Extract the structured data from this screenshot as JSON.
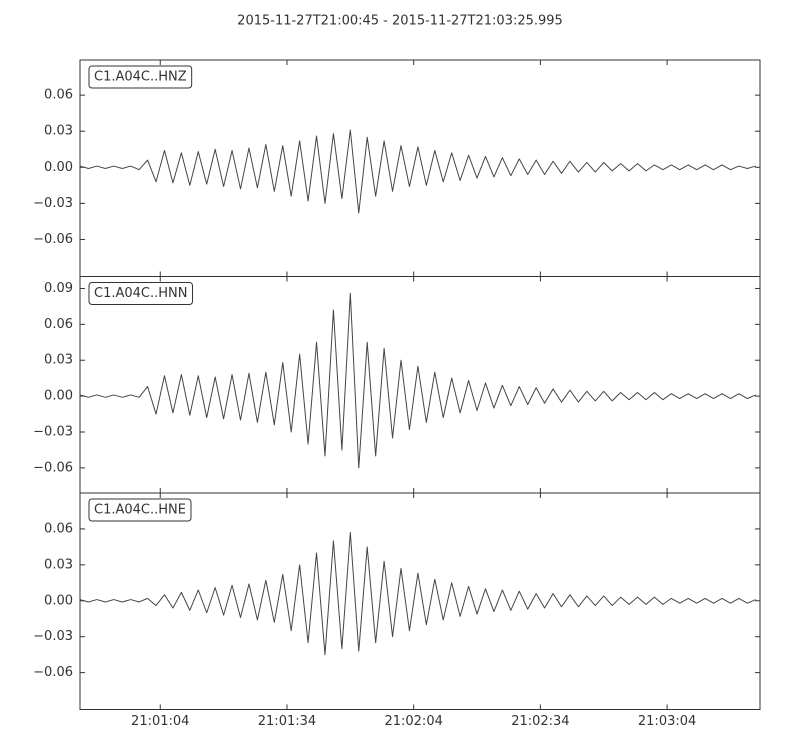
{
  "title": "2015-11-27T21:00:45  -  2015-11-27T21:03:25.995",
  "chart_data": [
    {
      "type": "line",
      "x": [
        45,
        47,
        49,
        51,
        53,
        55,
        57,
        59,
        61,
        63,
        65,
        67,
        69,
        71,
        73,
        75,
        77,
        79,
        81,
        83,
        85,
        87,
        89,
        91,
        93,
        95,
        97,
        99,
        101,
        103,
        105,
        107,
        109,
        111,
        113,
        115,
        117,
        119,
        121,
        123,
        125,
        127,
        129,
        131,
        133,
        135,
        137,
        139,
        141,
        143,
        145,
        147,
        149,
        151,
        153,
        155,
        157,
        159,
        161,
        163,
        165,
        167,
        169,
        171,
        173,
        175,
        177,
        179,
        181,
        183,
        185,
        187,
        189,
        191,
        193,
        195,
        197,
        199,
        201,
        203,
        205
      ],
      "series": [
        {
          "name": "C1.A04C..HNZ",
          "color": "#454545",
          "values": [
            0.001,
            -0.001,
            0.001,
            -0.001,
            0.001,
            -0.001,
            0.001,
            -0.002,
            0.006,
            -0.012,
            0.014,
            -0.013,
            0.012,
            -0.015,
            0.013,
            -0.014,
            0.015,
            -0.016,
            0.014,
            -0.018,
            0.016,
            -0.017,
            0.019,
            -0.02,
            0.018,
            -0.024,
            0.022,
            -0.028,
            0.026,
            -0.03,
            0.028,
            -0.026,
            0.031,
            -0.038,
            0.025,
            -0.024,
            0.022,
            -0.02,
            0.018,
            -0.016,
            0.017,
            -0.015,
            0.014,
            -0.012,
            0.012,
            -0.011,
            0.01,
            -0.009,
            0.009,
            -0.008,
            0.008,
            -0.007,
            0.007,
            -0.006,
            0.006,
            -0.006,
            0.005,
            -0.005,
            0.005,
            -0.004,
            0.004,
            -0.004,
            0.004,
            -0.003,
            0.003,
            -0.003,
            0.003,
            -0.003,
            0.002,
            -0.002,
            0.002,
            -0.002,
            0.002,
            -0.002,
            0.002,
            -0.002,
            0.002,
            -0.002,
            0.001,
            -0.001,
            0.001
          ]
        }
      ],
      "xlim": [
        45,
        205.995
      ],
      "ylim": [
        -0.0908,
        0.0892
      ],
      "yticks": [
        {
          "value": -0.06,
          "label": "−0.06"
        },
        {
          "value": -0.03,
          "label": "−0.03"
        },
        {
          "value": 0,
          "label": "0.00"
        },
        0.03,
        0.06
      ]
    },
    {
      "type": "line",
      "x": [
        45,
        47,
        49,
        51,
        53,
        55,
        57,
        59,
        61,
        63,
        65,
        67,
        69,
        71,
        73,
        75,
        77,
        79,
        81,
        83,
        85,
        87,
        89,
        91,
        93,
        95,
        97,
        99,
        101,
        103,
        105,
        107,
        109,
        111,
        113,
        115,
        117,
        119,
        121,
        123,
        125,
        127,
        129,
        131,
        133,
        135,
        137,
        139,
        141,
        143,
        145,
        147,
        149,
        151,
        153,
        155,
        157,
        159,
        161,
        163,
        165,
        167,
        169,
        171,
        173,
        175,
        177,
        179,
        181,
        183,
        185,
        187,
        189,
        191,
        193,
        195,
        197,
        199,
        201,
        203,
        205
      ],
      "series": [
        {
          "name": "C1.A04C..HNN",
          "color": "#454545",
          "values": [
            0.001,
            -0.001,
            0.001,
            -0.001,
            0.001,
            -0.001,
            0.001,
            -0.001,
            0.008,
            -0.015,
            0.017,
            -0.014,
            0.018,
            -0.016,
            0.017,
            -0.018,
            0.016,
            -0.019,
            0.018,
            -0.02,
            0.019,
            -0.022,
            0.02,
            -0.024,
            0.028,
            -0.03,
            0.035,
            -0.04,
            0.045,
            -0.05,
            0.072,
            -0.045,
            0.086,
            -0.06,
            0.045,
            -0.05,
            0.04,
            -0.035,
            0.03,
            -0.028,
            0.025,
            -0.022,
            0.02,
            -0.018,
            0.015,
            -0.014,
            0.013,
            -0.012,
            0.011,
            -0.01,
            0.009,
            -0.008,
            0.008,
            -0.007,
            0.007,
            -0.006,
            0.006,
            -0.005,
            0.005,
            -0.005,
            0.004,
            -0.004,
            0.004,
            -0.004,
            0.003,
            -0.003,
            0.003,
            -0.003,
            0.003,
            -0.003,
            0.002,
            -0.002,
            0.002,
            -0.002,
            0.002,
            -0.002,
            0.002,
            -0.002,
            0.002,
            -0.002,
            0.001
          ]
        }
      ],
      "xlim": [
        45,
        205.995
      ],
      "ylim": [
        -0.081,
        0.1
      ],
      "yticks": [
        {
          "value": -0.06,
          "label": "−0.06"
        },
        {
          "value": -0.03,
          "label": "−0.03"
        },
        {
          "value": 0,
          "label": "0.00"
        },
        0.03,
        0.06,
        0.09
      ]
    },
    {
      "type": "line",
      "x": [
        45,
        47,
        49,
        51,
        53,
        55,
        57,
        59,
        61,
        63,
        65,
        67,
        69,
        71,
        73,
        75,
        77,
        79,
        81,
        83,
        85,
        87,
        89,
        91,
        93,
        95,
        97,
        99,
        101,
        103,
        105,
        107,
        109,
        111,
        113,
        115,
        117,
        119,
        121,
        123,
        125,
        127,
        129,
        131,
        133,
        135,
        137,
        139,
        141,
        143,
        145,
        147,
        149,
        151,
        153,
        155,
        157,
        159,
        161,
        163,
        165,
        167,
        169,
        171,
        173,
        175,
        177,
        179,
        181,
        183,
        185,
        187,
        189,
        191,
        193,
        195,
        197,
        199,
        201,
        203,
        205
      ],
      "series": [
        {
          "name": "C1.A04C..HNE",
          "color": "#454545",
          "values": [
            0.001,
            -0.001,
            0.001,
            -0.001,
            0.001,
            -0.001,
            0.001,
            -0.001,
            0.002,
            -0.004,
            0.005,
            -0.006,
            0.007,
            -0.008,
            0.009,
            -0.01,
            0.011,
            -0.012,
            0.013,
            -0.014,
            0.014,
            -0.016,
            0.017,
            -0.018,
            0.022,
            -0.025,
            0.03,
            -0.035,
            0.04,
            -0.045,
            0.05,
            -0.04,
            0.057,
            -0.042,
            0.045,
            -0.035,
            0.033,
            -0.03,
            0.027,
            -0.025,
            0.023,
            -0.02,
            0.018,
            -0.016,
            0.015,
            -0.013,
            0.012,
            -0.011,
            0.01,
            -0.009,
            0.009,
            -0.008,
            0.008,
            -0.007,
            0.006,
            -0.006,
            0.006,
            -0.005,
            0.005,
            -0.005,
            0.004,
            -0.004,
            0.004,
            -0.004,
            0.003,
            -0.003,
            0.003,
            -0.003,
            0.003,
            -0.003,
            0.002,
            -0.002,
            0.002,
            -0.002,
            0.002,
            -0.002,
            0.002,
            -0.002,
            0.002,
            -0.002,
            0.001
          ]
        }
      ],
      "xlim": [
        45,
        205.995
      ],
      "ylim": [
        -0.0908,
        0.09
      ],
      "yticks": [
        {
          "value": -0.06,
          "label": "−0.06"
        },
        {
          "value": -0.03,
          "label": "−0.03"
        },
        {
          "value": 0,
          "label": "0.00"
        },
        0.03,
        0.06
      ],
      "xticks": [
        {
          "value": 64,
          "label": "21:01:04"
        },
        {
          "value": 94,
          "label": "21:01:34"
        },
        {
          "value": 124,
          "label": "21:02:04"
        },
        {
          "value": 154,
          "label": "21:02:34"
        },
        {
          "value": 184,
          "label": "21:03:04"
        }
      ]
    }
  ]
}
